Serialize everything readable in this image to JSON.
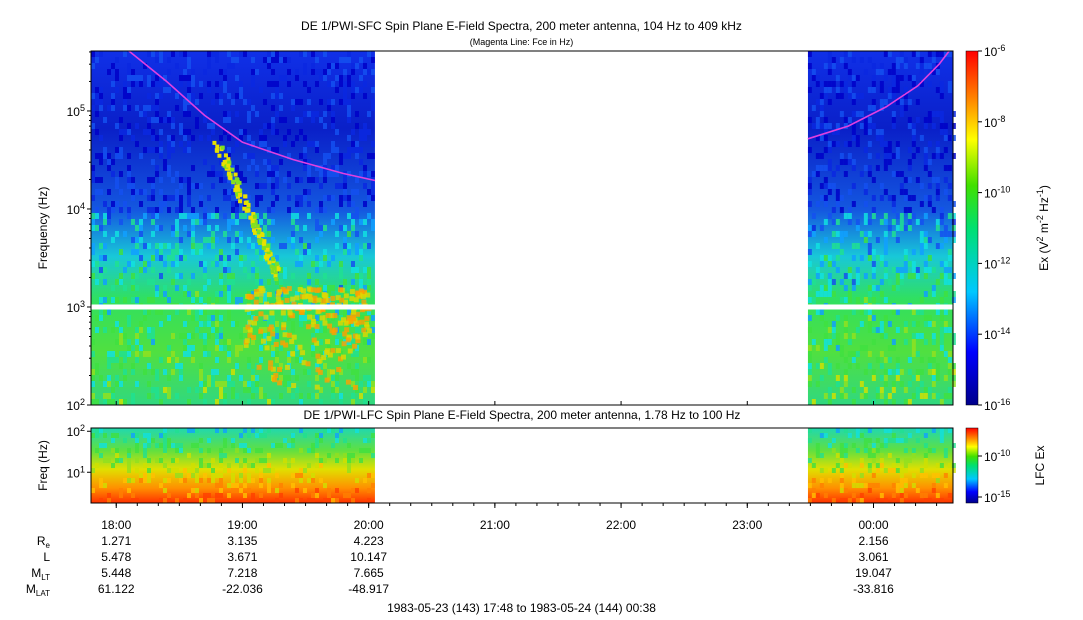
{
  "header": {
    "title": "DE 1/PWI-SFC  Spin Plane E-Field Spectra, 200 meter antenna, 104 Hz to 409 kHz",
    "subtitle": "(Magenta Line: Fce in Hz)"
  },
  "colors": {
    "fce_line": "#e040e0",
    "gap_white": "#ffffff",
    "axis": "#000000"
  },
  "chart_data": [
    {
      "type": "heatmap",
      "title": "DE 1/PWI-SFC  Spin Plane E-Field Spectra, 200 meter antenna, 104 Hz to 409 kHz",
      "subtitle": "(Magenta Line: Fce in Hz)",
      "ylabel": "Frequency (Hz)",
      "yscale": "log",
      "ylim": [
        100,
        409000
      ],
      "yticks": [
        {
          "value": 100,
          "base": "10",
          "exp": "2"
        },
        {
          "value": 1000,
          "base": "10",
          "exp": "3"
        },
        {
          "value": 10000,
          "base": "10",
          "exp": "4"
        },
        {
          "value": 100000,
          "base": "10",
          "exp": "5"
        }
      ],
      "xlim_hours": [
        17.8,
        24.63
      ],
      "data_gap_hours": [
        20.05,
        23.48
      ],
      "colorbar": {
        "label_prefix": "Ex (V",
        "label_sup1": "2",
        "label_mid": " m",
        "label_sup2": "-2",
        "label_mid2": " Hz",
        "label_sup3": "-1",
        "label_suffix": ")",
        "scale": "log",
        "range": [
          1e-16,
          1e-06
        ],
        "ticks": [
          {
            "value": 1e-06,
            "base": "10",
            "exp": "-6"
          },
          {
            "value": 1e-08,
            "base": "10",
            "exp": "-8"
          },
          {
            "value": 1e-10,
            "base": "10",
            "exp": "-10"
          },
          {
            "value": 1e-12,
            "base": "10",
            "exp": "-12"
          },
          {
            "value": 1e-14,
            "base": "10",
            "exp": "-14"
          },
          {
            "value": 1e-16,
            "base": "10",
            "exp": "-16"
          }
        ]
      },
      "fce_line": {
        "name": "Fce",
        "segments": [
          [
            [
              18.1,
              409000
            ],
            [
              18.4,
              200000
            ],
            [
              18.7,
              90000
            ],
            [
              19.0,
              48000
            ],
            [
              19.4,
              32000
            ],
            [
              19.8,
              23000
            ],
            [
              20.05,
              19500
            ]
          ],
          [
            [
              23.48,
              52000
            ],
            [
              23.8,
              70000
            ],
            [
              24.1,
              110000
            ],
            [
              24.35,
              180000
            ],
            [
              24.52,
              300000
            ],
            [
              24.6,
              409000
            ]
          ]
        ]
      }
    },
    {
      "type": "heatmap",
      "title": "DE 1/PWI-LFC  Spin Plane E-Field Spectra, 200 meter antenna, 1.78 Hz to 100 Hz",
      "ylabel": "Freq (Hz)",
      "yscale": "log",
      "ylim": [
        1.78,
        120
      ],
      "yticks": [
        {
          "value": 10,
          "base": "10",
          "exp": "1"
        },
        {
          "value": 100,
          "base": "10",
          "exp": "2"
        }
      ],
      "colorbar": {
        "label": "LFC Ex",
        "scale": "log",
        "ticks": [
          {
            "value": 1e-10,
            "base": "10",
            "exp": "-10"
          },
          {
            "value": 1e-15,
            "base": "10",
            "exp": "-15"
          }
        ]
      }
    }
  ],
  "time_axis": {
    "ticks": [
      {
        "hour": 18,
        "label": "18:00"
      },
      {
        "hour": 19,
        "label": "19:00"
      },
      {
        "hour": 20,
        "label": "20:00"
      },
      {
        "hour": 21,
        "label": "21:00"
      },
      {
        "hour": 22,
        "label": "22:00"
      },
      {
        "hour": 23,
        "label": "23:00"
      },
      {
        "hour": 24,
        "label": "00:00"
      }
    ]
  },
  "ephemeris": {
    "rows": [
      {
        "label": "R",
        "sub": "e",
        "values": [
          {
            "hour": 18,
            "text": "1.271"
          },
          {
            "hour": 19,
            "text": "3.135"
          },
          {
            "hour": 20,
            "text": "4.223"
          },
          {
            "hour": 24,
            "text": "2.156"
          }
        ]
      },
      {
        "label": "L",
        "sub": "",
        "values": [
          {
            "hour": 18,
            "text": "5.478"
          },
          {
            "hour": 19,
            "text": "3.671"
          },
          {
            "hour": 20,
            "text": "10.147"
          },
          {
            "hour": 24,
            "text": "3.061"
          }
        ]
      },
      {
        "label": "M",
        "sub": "LT",
        "values": [
          {
            "hour": 18,
            "text": "5.448"
          },
          {
            "hour": 19,
            "text": "7.218"
          },
          {
            "hour": 20,
            "text": "7.665"
          },
          {
            "hour": 24,
            "text": "19.047"
          }
        ]
      },
      {
        "label": "M",
        "sub": "LAT",
        "values": [
          {
            "hour": 18,
            "text": "61.122"
          },
          {
            "hour": 19,
            "text": "-22.036"
          },
          {
            "hour": 20,
            "text": "-48.917"
          },
          {
            "hour": 24,
            "text": "-33.816"
          }
        ]
      }
    ]
  },
  "footer": {
    "time_range": "1983-05-23 (143) 17:48 to 1983-05-24 (144) 00:38"
  }
}
